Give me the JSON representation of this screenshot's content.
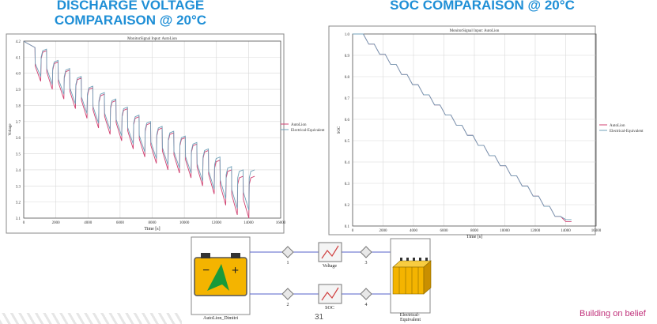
{
  "slide": {
    "title_left": "DISCHARGE VOLTAGE\nCOMPARAISON @ 20°C",
    "title_right": "SOC COMPARAISON @ 20°C",
    "page_number": "31",
    "tagline": "Building on belief"
  },
  "colors": {
    "title": "#1f8fd6",
    "autolion": "#d04070",
    "electrical": "#70a0b8",
    "tagline": "#c0307a"
  },
  "chart_data": [
    {
      "type": "line",
      "title": "MonitorSignal Input: AutoLion",
      "xlabel": "Time [s]",
      "ylabel": "Voltage",
      "xlim": [
        0,
        16000
      ],
      "ylim": [
        3.1,
        4.2
      ],
      "xticks": [
        0,
        2000,
        4000,
        6000,
        8000,
        10000,
        12000,
        14000,
        16000
      ],
      "yticks": [
        3.1,
        3.2,
        3.3,
        3.4,
        3.5,
        3.6,
        3.7,
        3.8,
        3.9,
        4.0,
        4.1,
        4.2
      ],
      "grid": true,
      "legend": "right",
      "pulse": {
        "start": 700,
        "period": 720,
        "duration": 360,
        "count": 19
      },
      "series": [
        {
          "name": "AutoLion",
          "color": "#d04070",
          "rest_values": [
            4.16,
            4.14,
            4.07,
            4.02,
            3.97,
            3.91,
            3.87,
            3.83,
            3.78,
            3.73,
            3.69,
            3.66,
            3.63,
            3.6,
            3.56,
            3.52,
            3.46,
            3.4,
            3.36
          ],
          "drop_values": [
            3.95,
            3.9,
            3.84,
            3.78,
            3.72,
            3.66,
            3.62,
            3.58,
            3.53,
            3.48,
            3.44,
            3.4,
            3.38,
            3.35,
            3.3,
            3.25,
            3.18,
            3.12,
            3.1
          ]
        },
        {
          "name": "Electrical-Equivalent",
          "color": "#70a0b8",
          "rest_values": [
            4.16,
            4.15,
            4.08,
            4.03,
            3.98,
            3.92,
            3.88,
            3.84,
            3.79,
            3.74,
            3.7,
            3.67,
            3.64,
            3.61,
            3.57,
            3.53,
            3.48,
            3.42,
            3.4
          ],
          "drop_values": [
            3.98,
            3.93,
            3.87,
            3.81,
            3.75,
            3.69,
            3.65,
            3.61,
            3.56,
            3.51,
            3.47,
            3.43,
            3.41,
            3.38,
            3.33,
            3.28,
            3.22,
            3.16,
            3.15
          ]
        }
      ]
    },
    {
      "type": "line",
      "title": "MonitorSignal Input: AutoLion",
      "xlabel": "Time [s]",
      "ylabel": "SOC",
      "xlim": [
        0,
        16000
      ],
      "ylim": [
        0.1,
        1.0
      ],
      "xticks": [
        0,
        2000,
        4000,
        6000,
        8000,
        10000,
        12000,
        14000,
        16000
      ],
      "yticks": [
        0.1,
        0.2,
        0.3,
        0.4,
        0.5,
        0.6,
        0.7,
        0.8,
        0.9,
        1.0
      ],
      "grid": true,
      "legend": "right",
      "pulse": {
        "start": 700,
        "period": 720,
        "duration": 360,
        "count": 19
      },
      "series": [
        {
          "name": "AutoLion",
          "color": "#d04070",
          "start": 1.0,
          "step": 0.0475,
          "final": 0.12
        },
        {
          "name": "Electrical-Equivalent",
          "color": "#70a0b8",
          "start": 1.0,
          "step": 0.0475,
          "final": 0.13
        }
      ]
    }
  ],
  "diagram": {
    "battery_label": "AutoLion_Dimitri",
    "electrical_label": "Electrical-\nEquivalent",
    "voltage_label": "Voltage",
    "soc_label": "SOC",
    "nodes": [
      "1",
      "2",
      "3",
      "4"
    ]
  }
}
